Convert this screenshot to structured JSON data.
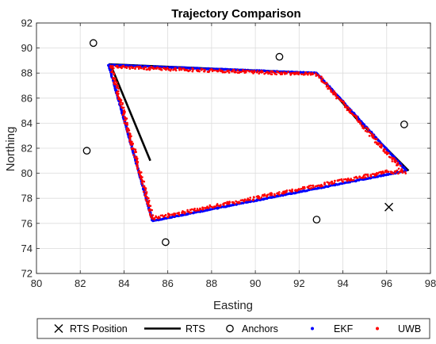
{
  "chart_data": {
    "type": "scatter",
    "title": "Trajectory Comparison",
    "xlabel": "Easting",
    "ylabel": "Northing",
    "xlim": [
      80,
      98
    ],
    "ylim": [
      72,
      92
    ],
    "xticks": [
      "80",
      "82",
      "84",
      "86",
      "88",
      "90",
      "92",
      "94",
      "96",
      "98"
    ],
    "yticks": [
      "72",
      "74",
      "76",
      "78",
      "80",
      "82",
      "84",
      "86",
      "88",
      "90",
      "92"
    ],
    "grid": true,
    "legend_position": "bottom",
    "legend": [
      {
        "label": "RTS Position",
        "marker": "x",
        "color": "#000000"
      },
      {
        "label": "RTS",
        "marker": "line",
        "color": "#000000"
      },
      {
        "label": "Anchors",
        "marker": "o",
        "color": "#000000"
      },
      {
        "label": "EKF",
        "marker": "dot",
        "color": "#0000ff"
      },
      {
        "label": "UWB",
        "marker": "dot",
        "color": "#ff0000"
      }
    ],
    "series": [
      {
        "name": "RTS Position",
        "marker": "x",
        "color": "#000000",
        "points": [
          [
            96.1,
            77.3
          ]
        ]
      },
      {
        "name": "RTS",
        "marker": "line",
        "color": "#000000",
        "points": [
          [
            83.3,
            88.7
          ],
          [
            92.8,
            88.0
          ],
          [
            94.6,
            84.4
          ],
          [
            97.0,
            80.2
          ]
        ]
      },
      {
        "name": "RTS",
        "marker": "line",
        "color": "#000000",
        "points": [
          [
            83.4,
            88.6
          ],
          [
            85.2,
            81.0
          ]
        ]
      },
      {
        "name": "Anchors",
        "marker": "o",
        "color": "#000000",
        "points": [
          [
            82.6,
            90.4
          ],
          [
            91.1,
            89.3
          ],
          [
            82.3,
            81.8
          ],
          [
            96.8,
            83.9
          ],
          [
            85.9,
            74.5
          ],
          [
            92.8,
            76.3
          ]
        ]
      },
      {
        "name": "EKF",
        "marker": "dot",
        "color": "#0000ff",
        "points": [
          [
            83.3,
            88.65
          ],
          [
            92.8,
            88.0
          ],
          [
            96.9,
            80.2
          ],
          [
            85.3,
            76.2
          ],
          [
            83.3,
            88.65
          ]
        ]
      },
      {
        "name": "UWB",
        "marker": "dot",
        "color": "#ff0000",
        "points": [
          [
            83.4,
            88.5
          ],
          [
            92.8,
            87.9
          ],
          [
            96.8,
            80.1
          ],
          [
            96.0,
            80.1
          ],
          [
            85.3,
            76.4
          ],
          [
            83.4,
            88.5
          ]
        ]
      }
    ]
  }
}
